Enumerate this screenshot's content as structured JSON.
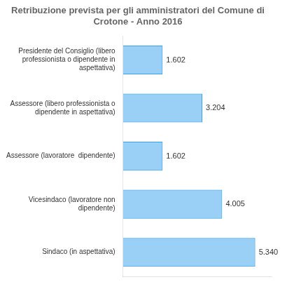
{
  "chart_data": {
    "type": "bar",
    "orientation": "horizontal",
    "title": "Retribuzione prevista per gli amministratori del Comune di\nCrotone - Anno 2016",
    "categories": [
      "Sindaco (in aspettativa)",
      "Vicesindaco (lavoratore non\ndipendente)",
      "Assessore (lavoratore  dipendente)",
      "Assessore (libero professionista o\ndipendente in aspettativa)",
      "Presidente del Consiglio (libero\nprofessionista o dipendente in\naspettativa)"
    ],
    "values": [
      5340,
      4005,
      1602,
      3204,
      1602
    ],
    "value_labels": [
      "5.340",
      "4.005",
      "1.602",
      "3.204",
      "1.602"
    ],
    "data_labels": true,
    "xlim": [
      0,
      6000
    ],
    "xticks": [],
    "grid": false,
    "tick_labels": "y"
  }
}
